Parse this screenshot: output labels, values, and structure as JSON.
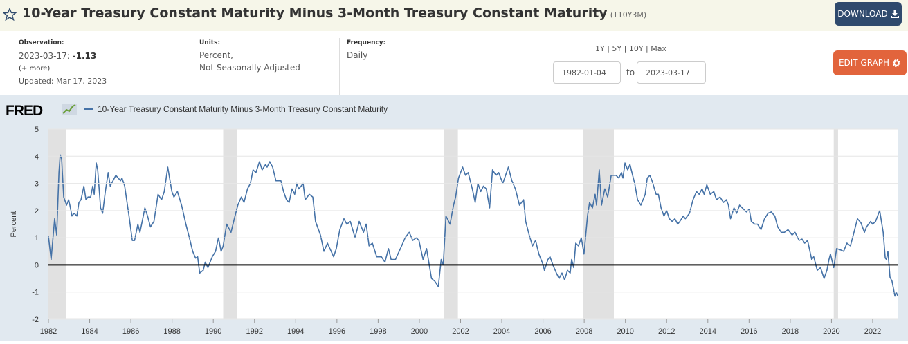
{
  "header": {
    "title": "10-Year Treasury Constant Maturity Minus 3-Month Treasury Constant Maturity",
    "series_id": "(T10Y3M)",
    "download": "DOWNLOAD"
  },
  "meta": {
    "observation": {
      "label": "Observation:",
      "date": "2023-03-17:",
      "value": "-1.13",
      "more": "(+ more)",
      "updated": "Updated: Mar 17, 2023"
    },
    "units": {
      "label": "Units:",
      "line1": "Percent,",
      "line2": "Not Seasonally Adjusted"
    },
    "frequency": {
      "label": "Frequency:",
      "value": "Daily"
    },
    "ranges": [
      "1Y",
      "5Y",
      "10Y",
      "Max"
    ],
    "date_from": "1982-01-04",
    "date_to_label": "to",
    "date_to": "2023-03-17",
    "edit": "EDIT GRAPH"
  },
  "logo": "FRED",
  "chart_data": {
    "type": "line",
    "ylabel": "Percent",
    "xlim": [
      1982.0,
      2023.21
    ],
    "xticks": [
      1982,
      1984,
      1986,
      1988,
      1990,
      1992,
      1994,
      1996,
      1998,
      2000,
      2002,
      2004,
      2006,
      2008,
      2010,
      2012,
      2014,
      2016,
      2018,
      2020,
      2022
    ],
    "ylim": [
      -2,
      5
    ],
    "yticks": [
      -2,
      -1,
      0,
      1,
      2,
      3,
      4,
      5
    ],
    "grid": true,
    "recessions": [
      [
        1981.54,
        1982.87
      ],
      [
        1990.48,
        1991.16
      ],
      [
        2001.19,
        2001.87
      ],
      [
        2007.96,
        2009.44
      ],
      [
        2020.11,
        2020.32
      ]
    ],
    "x": [
      1982.0,
      1982.13,
      1982.3,
      1982.4,
      1982.51,
      1982.57,
      1982.64,
      1982.74,
      1982.88,
      1982.98,
      1983.04,
      1983.14,
      1983.25,
      1983.38,
      1983.48,
      1983.58,
      1983.72,
      1983.82,
      1983.92,
      1984.05,
      1984.15,
      1984.22,
      1984.32,
      1984.39,
      1984.53,
      1984.63,
      1984.76,
      1984.9,
      1985.0,
      1985.27,
      1985.5,
      1985.57,
      1985.7,
      1985.91,
      1986.07,
      1986.18,
      1986.34,
      1986.44,
      1986.55,
      1986.68,
      1986.81,
      1986.95,
      1987.12,
      1987.32,
      1987.49,
      1987.62,
      1987.79,
      1987.99,
      1988.09,
      1988.26,
      1988.46,
      1988.67,
      1988.84,
      1989.0,
      1989.14,
      1989.24,
      1989.34,
      1989.51,
      1989.61,
      1989.74,
      1989.95,
      1990.11,
      1990.25,
      1990.38,
      1990.48,
      1990.65,
      1990.86,
      1991.02,
      1991.19,
      1991.36,
      1991.49,
      1991.66,
      1991.8,
      1991.93,
      1992.07,
      1992.24,
      1992.37,
      1992.54,
      1992.61,
      1992.74,
      1992.88,
      1993.04,
      1993.28,
      1993.41,
      1993.55,
      1993.68,
      1993.82,
      1993.95,
      1994.05,
      1994.15,
      1994.26,
      1994.36,
      1994.46,
      1994.66,
      1994.83,
      1994.96,
      1995.2,
      1995.37,
      1995.54,
      1995.84,
      1995.97,
      1996.14,
      1996.34,
      1996.48,
      1996.65,
      1996.88,
      1997.08,
      1997.29,
      1997.42,
      1997.56,
      1997.72,
      1997.93,
      1998.16,
      1998.33,
      1998.5,
      1998.63,
      1998.84,
      1999.14,
      1999.31,
      1999.51,
      1999.68,
      1999.85,
      1999.98,
      2000.18,
      2000.35,
      2000.59,
      2000.75,
      2000.92,
      2001.06,
      2001.16,
      2001.29,
      2001.49,
      2001.66,
      2001.76,
      2001.9,
      2002.1,
      2002.24,
      2002.37,
      2002.57,
      2002.71,
      2002.84,
      2002.98,
      2003.11,
      2003.25,
      2003.41,
      2003.55,
      2003.72,
      2003.85,
      2004.05,
      2004.32,
      2004.49,
      2004.66,
      2004.86,
      2005.06,
      2005.16,
      2005.33,
      2005.49,
      2005.64,
      2005.8,
      2006.01,
      2006.07,
      2006.24,
      2006.34,
      2006.48,
      2006.65,
      2006.78,
      2006.92,
      2007.05,
      2007.19,
      2007.32,
      2007.39,
      2007.49,
      2007.59,
      2007.72,
      2007.86,
      2007.99,
      2008.16,
      2008.26,
      2008.4,
      2008.53,
      2008.6,
      2008.73,
      2008.84,
      2009.0,
      2009.14,
      2009.31,
      2009.54,
      2009.68,
      2009.81,
      2009.88,
      2009.98,
      2010.11,
      2010.22,
      2010.35,
      2010.45,
      2010.59,
      2010.75,
      2010.96,
      2011.06,
      2011.19,
      2011.29,
      2011.49,
      2011.6,
      2011.73,
      2011.87,
      2012.0,
      2012.13,
      2012.27,
      2012.4,
      2012.54,
      2012.64,
      2012.81,
      2012.91,
      2013.11,
      2013.28,
      2013.45,
      2013.58,
      2013.72,
      2013.82,
      2013.95,
      2014.12,
      2014.29,
      2014.42,
      2014.59,
      2014.76,
      2014.9,
      2015.0,
      2015.1,
      2015.27,
      2015.4,
      2015.54,
      2015.67,
      2015.87,
      2016.01,
      2016.11,
      2016.28,
      2016.41,
      2016.58,
      2016.75,
      2016.92,
      2017.08,
      2017.25,
      2017.39,
      2017.56,
      2017.72,
      2017.89,
      2018.09,
      2018.23,
      2018.43,
      2018.57,
      2018.7,
      2018.84,
      2019.04,
      2019.14,
      2019.31,
      2019.47,
      2019.64,
      2019.78,
      2019.88,
      2019.95,
      2020.11,
      2020.25,
      2020.45,
      2020.59,
      2020.75,
      2020.92,
      2021.06,
      2021.26,
      2021.43,
      2021.6,
      2021.7,
      2021.9,
      2022.0,
      2022.14,
      2022.34,
      2022.51,
      2022.61,
      2022.67,
      2022.74,
      2022.84,
      2022.94,
      2023.08,
      2023.14,
      2023.21
    ],
    "series": [
      {
        "name": "10-Year Treasury Constant Maturity Minus 3-Month Treasury Constant Maturity",
        "color": "#4572a7",
        "values": [
          1.05,
          0.2,
          1.7,
          1.1,
          3.4,
          4.05,
          3.9,
          2.5,
          2.2,
          2.4,
          2.2,
          1.8,
          1.9,
          1.8,
          2.3,
          2.4,
          2.9,
          2.4,
          2.5,
          2.5,
          2.9,
          2.6,
          3.75,
          3.5,
          2.1,
          1.9,
          2.7,
          3.4,
          2.9,
          3.3,
          3.1,
          3.2,
          2.9,
          1.8,
          0.9,
          0.9,
          1.5,
          1.2,
          1.6,
          2.1,
          1.8,
          1.4,
          1.6,
          2.6,
          2.4,
          2.7,
          3.6,
          2.7,
          2.5,
          2.7,
          2.2,
          1.5,
          1.0,
          0.5,
          0.25,
          0.3,
          -0.3,
          -0.2,
          0.1,
          -0.1,
          0.3,
          0.5,
          1.0,
          0.5,
          0.7,
          1.5,
          1.2,
          1.7,
          2.2,
          2.5,
          2.3,
          2.8,
          3.0,
          3.5,
          3.4,
          3.8,
          3.5,
          3.7,
          3.6,
          3.8,
          3.6,
          3.1,
          3.1,
          2.7,
          2.4,
          2.3,
          2.8,
          2.6,
          3.0,
          2.8,
          2.9,
          3.0,
          2.4,
          2.6,
          2.5,
          1.6,
          1.1,
          0.5,
          0.8,
          0.3,
          0.6,
          1.3,
          1.7,
          1.5,
          1.6,
          1.0,
          1.6,
          1.2,
          1.5,
          0.7,
          0.8,
          0.3,
          0.3,
          0.1,
          0.6,
          0.2,
          0.2,
          0.7,
          1.0,
          1.2,
          0.9,
          1.0,
          0.9,
          0.2,
          0.6,
          -0.5,
          -0.6,
          -0.8,
          0.2,
          0.0,
          1.8,
          1.5,
          2.2,
          2.5,
          3.2,
          3.6,
          3.3,
          3.4,
          2.8,
          2.3,
          3.0,
          2.7,
          2.9,
          2.8,
          2.1,
          3.5,
          3.3,
          3.4,
          3.0,
          3.6,
          3.1,
          2.8,
          2.2,
          2.4,
          1.6,
          1.1,
          0.7,
          0.9,
          0.4,
          0.0,
          -0.2,
          0.2,
          0.3,
          0.0,
          -0.3,
          -0.5,
          -0.3,
          -0.55,
          -0.2,
          -0.3,
          0.2,
          -0.1,
          0.8,
          0.7,
          1.0,
          0.4,
          1.8,
          2.3,
          2.1,
          2.6,
          2.2,
          3.5,
          2.2,
          2.8,
          2.5,
          3.3,
          3.3,
          3.2,
          3.4,
          3.2,
          3.75,
          3.5,
          3.7,
          3.3,
          3.0,
          2.4,
          2.2,
          2.6,
          3.2,
          3.3,
          3.1,
          2.6,
          2.6,
          2.1,
          1.8,
          2.0,
          1.7,
          1.6,
          1.7,
          1.5,
          1.6,
          1.8,
          1.7,
          1.9,
          2.4,
          2.7,
          2.6,
          2.8,
          2.6,
          2.95,
          2.6,
          2.7,
          2.4,
          2.5,
          2.3,
          2.4,
          2.2,
          1.7,
          2.1,
          1.9,
          2.2,
          2.1,
          1.95,
          2.05,
          1.6,
          1.5,
          1.5,
          1.3,
          1.7,
          1.9,
          1.95,
          1.8,
          1.4,
          1.2,
          1.2,
          1.3,
          1.1,
          1.2,
          0.9,
          0.95,
          0.8,
          0.9,
          0.2,
          0.3,
          -0.2,
          -0.1,
          -0.5,
          -0.2,
          0.2,
          0.4,
          -0.1,
          0.6,
          0.55,
          0.5,
          0.8,
          0.7,
          1.1,
          1.7,
          1.55,
          1.2,
          1.4,
          1.6,
          1.5,
          1.6,
          2.0,
          1.2,
          0.25,
          0.2,
          0.5,
          -0.45,
          -0.6,
          -1.15,
          -1.0,
          -1.13
        ]
      }
    ]
  }
}
